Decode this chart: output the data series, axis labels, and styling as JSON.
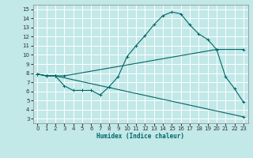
{
  "xlabel": "Humidex (Indice chaleur)",
  "bg_color": "#c2e8e8",
  "grid_color": "#ffffff",
  "line_color": "#006666",
  "xlim": [
    -0.5,
    23.5
  ],
  "ylim": [
    2.5,
    15.5
  ],
  "xticks": [
    0,
    1,
    2,
    3,
    4,
    5,
    6,
    7,
    8,
    9,
    10,
    11,
    12,
    13,
    14,
    15,
    16,
    17,
    18,
    19,
    20,
    21,
    22,
    23
  ],
  "yticks": [
    3,
    4,
    5,
    6,
    7,
    8,
    9,
    10,
    11,
    12,
    13,
    14,
    15
  ],
  "line1_x": [
    0,
    1,
    2,
    3,
    4,
    5,
    6,
    7,
    8,
    9,
    10,
    11,
    12,
    13,
    14,
    15,
    16,
    17,
    18,
    19,
    20,
    21,
    22,
    23
  ],
  "line1_y": [
    7.9,
    7.7,
    7.7,
    6.6,
    6.1,
    6.1,
    6.1,
    5.6,
    6.5,
    7.6,
    9.8,
    11.0,
    12.1,
    13.3,
    14.3,
    14.7,
    14.5,
    13.3,
    12.3,
    11.7,
    10.6,
    7.6,
    6.3,
    4.8
  ],
  "line2_x": [
    0,
    1,
    2,
    23
  ],
  "line2_y": [
    7.9,
    7.7,
    7.7,
    3.2
  ],
  "line3_x": [
    0,
    1,
    2,
    3,
    20,
    23
  ],
  "line3_y": [
    7.9,
    7.7,
    7.7,
    7.7,
    10.6,
    10.6
  ]
}
